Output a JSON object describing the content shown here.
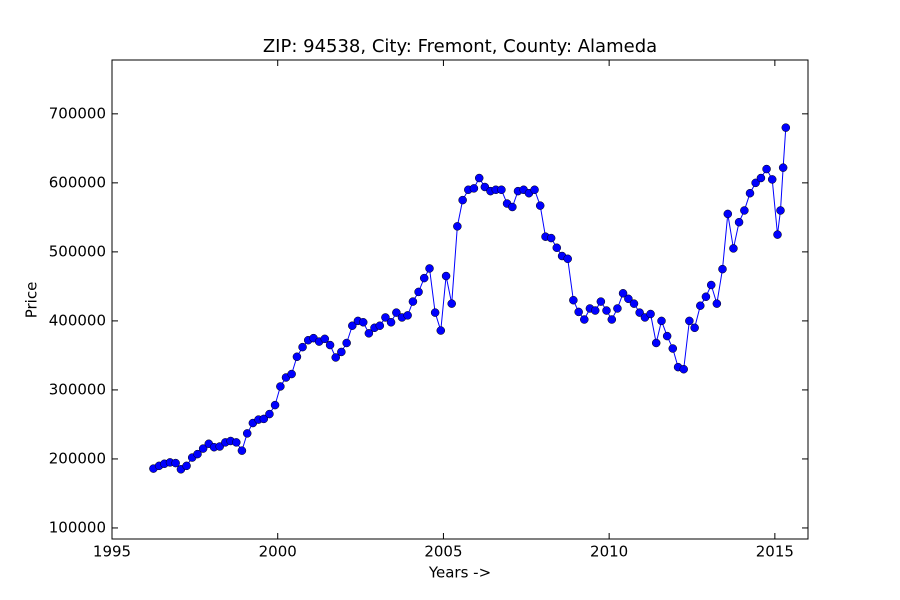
{
  "chart_data": {
    "type": "line",
    "title": "ZIP: 94538, City: Fremont, County: Alameda",
    "xlabel": "Years ->",
    "ylabel": "Price",
    "xlim": [
      1995,
      2016
    ],
    "xticks": [
      1995,
      2000,
      2005,
      2010,
      2015
    ],
    "ylim": [
      84000,
      778000
    ],
    "yticks": [
      100000,
      200000,
      300000,
      400000,
      500000,
      600000,
      700000
    ],
    "series": [
      {
        "color": "#0000ff",
        "x": [
          1996.25,
          1996.42,
          1996.58,
          1996.75,
          1996.92,
          1997.08,
          1997.25,
          1997.42,
          1997.58,
          1997.75,
          1997.92,
          1998.08,
          1998.25,
          1998.42,
          1998.58,
          1998.75,
          1998.92,
          1999.08,
          1999.25,
          1999.42,
          1999.58,
          1999.75,
          1999.92,
          2000.08,
          2000.25,
          2000.42,
          2000.58,
          2000.75,
          2000.92,
          2001.08,
          2001.25,
          2001.42,
          2001.58,
          2001.75,
          2001.92,
          2002.08,
          2002.25,
          2002.42,
          2002.58,
          2002.75,
          2002.92,
          2003.08,
          2003.25,
          2003.42,
          2003.58,
          2003.75,
          2003.92,
          2004.08,
          2004.25,
          2004.42,
          2004.58,
          2004.75,
          2004.92,
          2005.08,
          2005.25,
          2005.42,
          2005.58,
          2005.75,
          2005.92,
          2006.08,
          2006.25,
          2006.42,
          2006.58,
          2006.75,
          2006.92,
          2007.08,
          2007.25,
          2007.42,
          2007.58,
          2007.75,
          2007.92,
          2008.08,
          2008.25,
          2008.42,
          2008.58,
          2008.75,
          2008.92,
          2009.08,
          2009.25,
          2009.42,
          2009.58,
          2009.75,
          2009.92,
          2010.08,
          2010.25,
          2010.42,
          2010.58,
          2010.75,
          2010.92,
          2011.08,
          2011.25,
          2011.42,
          2011.58,
          2011.75,
          2011.92,
          2012.08,
          2012.25,
          2012.42,
          2012.58,
          2012.75,
          2012.92,
          2013.08,
          2013.25,
          2013.42,
          2013.58,
          2013.75,
          2013.92,
          2014.08,
          2014.25,
          2014.42,
          2014.58,
          2014.75,
          2014.92,
          2015.08,
          2015.17,
          2015.25,
          2015.33
        ],
        "values": [
          186000,
          190000,
          193000,
          195000,
          194000,
          185000,
          190000,
          202000,
          207000,
          215000,
          222000,
          217000,
          218000,
          224000,
          226000,
          224000,
          212000,
          237000,
          252000,
          257000,
          258000,
          265000,
          278000,
          305000,
          318000,
          323000,
          348000,
          362000,
          372000,
          375000,
          370000,
          374000,
          365000,
          347000,
          355000,
          368000,
          393000,
          400000,
          398000,
          382000,
          390000,
          393000,
          405000,
          398000,
          412000,
          405000,
          408000,
          428000,
          442000,
          462000,
          476000,
          412000,
          386000,
          465000,
          425000,
          537000,
          575000,
          590000,
          592000,
          607000,
          594000,
          588000,
          590000,
          590000,
          570000,
          565000,
          588000,
          590000,
          585000,
          590000,
          567000,
          522000,
          520000,
          506000,
          494000,
          490000,
          430000,
          413000,
          402000,
          418000,
          415000,
          428000,
          415000,
          402000,
          418000,
          440000,
          432000,
          425000,
          412000,
          405000,
          410000,
          368000,
          400000,
          378000,
          360000,
          333000,
          330000,
          400000,
          390000,
          422000,
          435000,
          452000,
          425000,
          475000,
          555000,
          505000,
          543000,
          560000,
          585000,
          600000,
          607000,
          620000,
          605000,
          525000,
          560000,
          622000,
          680000
        ]
      }
    ]
  }
}
